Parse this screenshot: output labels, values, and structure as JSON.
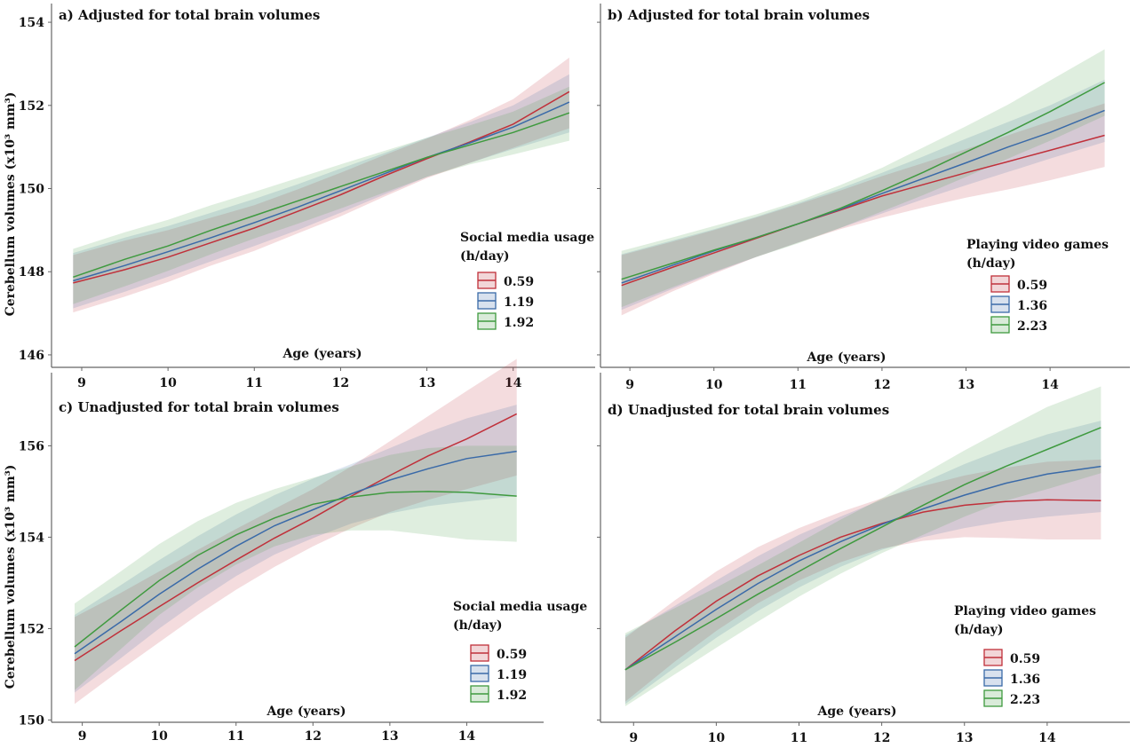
{
  "figure": {
    "ylabel": "Cerebellum volumes (x10³ mm³)",
    "xlabel": "Age (years)"
  },
  "chart_data": [
    {
      "type": "line",
      "title": "a) Adjusted for total brain volumes",
      "xlabel": "Age (years)",
      "ylabel": "Cerebellum volumes (x10³ mm³)",
      "x_ticks": [
        9,
        10,
        11,
        12,
        13,
        14
      ],
      "y_ticks": [
        146,
        148,
        150,
        152,
        154
      ],
      "xlim": [
        8.65,
        14.95
      ],
      "ylim": [
        145.7,
        154.45
      ],
      "x": [
        8.9,
        9.5,
        10,
        10.5,
        11,
        11.5,
        12,
        12.5,
        13,
        13.5,
        14,
        14.65
      ],
      "legend_title": "Social media usage (h/day)",
      "series": [
        {
          "name": "0.59",
          "color": "#c0303a",
          "values": [
            147.73,
            148.05,
            148.35,
            148.7,
            149.05,
            149.45,
            149.85,
            150.3,
            150.72,
            151.12,
            151.55,
            152.33
          ],
          "lower": [
            147.02,
            147.4,
            147.75,
            148.15,
            148.5,
            148.92,
            149.33,
            149.8,
            150.25,
            150.62,
            150.98,
            151.45
          ],
          "upper": [
            148.4,
            148.75,
            149.0,
            149.3,
            149.6,
            149.98,
            150.38,
            150.8,
            151.2,
            151.65,
            152.15,
            153.15
          ]
        },
        {
          "name": "1.19",
          "color": "#3a6aa8",
          "values": [
            147.78,
            148.15,
            148.48,
            148.82,
            149.18,
            149.55,
            149.95,
            150.35,
            150.75,
            151.1,
            151.48,
            152.08
          ],
          "lower": [
            147.12,
            147.52,
            147.88,
            148.25,
            148.62,
            149.0,
            149.42,
            149.85,
            150.28,
            150.62,
            150.95,
            151.35
          ],
          "upper": [
            148.45,
            148.82,
            149.1,
            149.42,
            149.75,
            150.1,
            150.48,
            150.85,
            151.22,
            151.6,
            152.0,
            152.75
          ]
        },
        {
          "name": "1.92",
          "color": "#3f9a3f",
          "values": [
            147.87,
            148.3,
            148.62,
            149.0,
            149.35,
            149.7,
            150.05,
            150.4,
            150.75,
            151.05,
            151.35,
            151.82
          ],
          "lower": [
            147.22,
            147.65,
            148.02,
            148.42,
            148.8,
            149.15,
            149.52,
            149.9,
            150.28,
            150.58,
            150.82,
            151.15
          ],
          "upper": [
            148.55,
            148.95,
            149.25,
            149.6,
            149.92,
            150.25,
            150.58,
            150.9,
            151.22,
            151.52,
            151.85,
            152.45
          ]
        }
      ]
    },
    {
      "type": "line",
      "title": "b) Adjusted for total brain volumes",
      "xlabel": "Age (years)",
      "x_ticks": [
        9,
        10,
        11,
        12,
        13,
        14
      ],
      "xlim": [
        8.65,
        14.95
      ],
      "ylim": [
        145.7,
        154.45
      ],
      "x": [
        8.9,
        9.5,
        10,
        10.5,
        11,
        11.5,
        12,
        12.5,
        13,
        13.5,
        14,
        14.65
      ],
      "legend_title": "Playing video games (h/day)",
      "series": [
        {
          "name": "0.59",
          "color": "#c0303a",
          "values": [
            147.67,
            148.1,
            148.45,
            148.8,
            149.15,
            149.48,
            149.82,
            150.1,
            150.38,
            150.65,
            150.92,
            151.28
          ],
          "lower": [
            146.95,
            147.52,
            147.95,
            148.35,
            148.7,
            149.02,
            149.3,
            149.55,
            149.78,
            149.98,
            150.2,
            150.52
          ],
          "upper": [
            148.4,
            148.72,
            149.0,
            149.3,
            149.62,
            149.95,
            150.3,
            150.62,
            150.95,
            151.28,
            151.62,
            152.05
          ]
        },
        {
          "name": "1.36",
          "color": "#3a6aa8",
          "values": [
            147.73,
            148.15,
            148.5,
            148.82,
            149.15,
            149.5,
            149.88,
            150.25,
            150.62,
            151.0,
            151.35,
            151.88
          ],
          "lower": [
            147.08,
            147.58,
            147.98,
            148.35,
            148.7,
            149.05,
            149.4,
            149.75,
            150.08,
            150.4,
            150.72,
            151.12
          ],
          "upper": [
            148.42,
            148.75,
            149.02,
            149.32,
            149.65,
            150.0,
            150.38,
            150.78,
            151.2,
            151.6,
            152.0,
            152.62
          ]
        },
        {
          "name": "2.23",
          "color": "#3f9a3f",
          "values": [
            147.82,
            148.2,
            148.52,
            148.82,
            149.15,
            149.52,
            149.95,
            150.4,
            150.88,
            151.35,
            151.85,
            152.55
          ],
          "lower": [
            147.15,
            147.62,
            148.0,
            148.35,
            148.68,
            149.05,
            149.45,
            149.85,
            150.28,
            150.72,
            151.15,
            151.75
          ],
          "upper": [
            148.5,
            148.82,
            149.1,
            149.38,
            149.7,
            150.08,
            150.5,
            151.0,
            151.5,
            152.02,
            152.6,
            153.35
          ]
        }
      ]
    },
    {
      "type": "line",
      "title": "c) Unadjusted for total brain volumes",
      "xlabel": "Age (years)",
      "ylabel": "Cerebellum volumes (x10³ mm³)",
      "x_ticks": [
        9,
        10,
        11,
        12,
        13,
        14
      ],
      "y_ticks": [
        150,
        152,
        154,
        156
      ],
      "xlim": [
        8.6,
        15.0
      ],
      "ylim": [
        149.95,
        157.6
      ],
      "x": [
        8.9,
        9.5,
        10,
        10.5,
        11,
        11.5,
        12,
        12.5,
        13,
        13.5,
        14,
        14.65
      ],
      "legend_title": "Social media usage (h/day)",
      "series": [
        {
          "name": "0.59",
          "color": "#c0303a",
          "values": [
            151.3,
            151.95,
            152.48,
            153.0,
            153.5,
            153.98,
            154.42,
            154.9,
            155.35,
            155.78,
            156.15,
            156.7
          ],
          "lower": [
            150.35,
            151.1,
            151.7,
            152.3,
            152.85,
            153.35,
            153.8,
            154.2,
            154.55,
            154.82,
            155.05,
            155.35
          ],
          "upper": [
            152.25,
            152.78,
            153.25,
            153.72,
            154.18,
            154.62,
            155.05,
            155.55,
            156.1,
            156.65,
            157.2,
            157.9
          ]
        },
        {
          "name": "1.19",
          "color": "#3a6aa8",
          "values": [
            151.45,
            152.15,
            152.75,
            153.3,
            153.8,
            154.25,
            154.6,
            154.95,
            155.25,
            155.5,
            155.72,
            155.88
          ],
          "lower": [
            150.6,
            151.35,
            152.0,
            152.6,
            153.15,
            153.62,
            153.98,
            154.3,
            154.52,
            154.68,
            154.78,
            154.9
          ],
          "upper": [
            152.3,
            152.95,
            153.5,
            154.02,
            154.5,
            154.92,
            155.28,
            155.6,
            155.95,
            156.3,
            156.6,
            156.9
          ]
        },
        {
          "name": "1.92",
          "color": "#3f9a3f",
          "values": [
            151.6,
            152.4,
            153.05,
            153.6,
            154.05,
            154.42,
            154.72,
            154.88,
            154.98,
            155.0,
            154.98,
            154.9
          ],
          "lower": [
            150.65,
            151.55,
            152.3,
            152.9,
            153.4,
            153.8,
            154.05,
            154.15,
            154.15,
            154.05,
            153.95,
            153.9
          ],
          "upper": [
            152.55,
            153.25,
            153.85,
            154.35,
            154.75,
            155.05,
            155.3,
            155.55,
            155.8,
            155.95,
            156.0,
            156.0
          ]
        }
      ]
    },
    {
      "type": "line",
      "title": "d) Unadjusted for total brain volumes",
      "xlabel": "Age (years)",
      "x_ticks": [
        9,
        10,
        11,
        12,
        13,
        14
      ],
      "xlim": [
        8.6,
        15.0
      ],
      "ylim": [
        149.95,
        157.6
      ],
      "x": [
        8.9,
        9.5,
        10,
        10.5,
        11,
        11.5,
        12,
        12.5,
        13,
        13.5,
        14,
        14.65
      ],
      "legend_title": "Playing video games (h/day)",
      "series": [
        {
          "name": "0.59",
          "color": "#c0303a",
          "values": [
            151.1,
            151.95,
            152.6,
            153.15,
            153.6,
            154.0,
            154.3,
            154.55,
            154.7,
            154.78,
            154.82,
            154.8
          ],
          "lower": [
            150.4,
            151.28,
            151.95,
            152.55,
            153.05,
            153.45,
            153.75,
            153.92,
            154.0,
            153.98,
            153.95,
            153.95
          ],
          "upper": [
            151.8,
            152.62,
            153.25,
            153.78,
            154.2,
            154.55,
            154.85,
            155.12,
            155.35,
            155.52,
            155.65,
            155.7
          ]
        },
        {
          "name": "1.36",
          "color": "#3a6aa8",
          "values": [
            151.1,
            151.82,
            152.42,
            152.98,
            153.48,
            153.9,
            154.28,
            154.62,
            154.92,
            155.18,
            155.38,
            155.55
          ],
          "lower": [
            150.35,
            151.15,
            151.8,
            152.38,
            152.9,
            153.35,
            153.72,
            154.0,
            154.2,
            154.35,
            154.45,
            154.55
          ],
          "upper": [
            151.85,
            152.5,
            153.05,
            153.58,
            154.05,
            154.45,
            154.82,
            155.2,
            155.6,
            155.95,
            156.25,
            156.55
          ]
        },
        {
          "name": "2.23",
          "color": "#3f9a3f",
          "values": [
            151.1,
            151.7,
            152.22,
            152.75,
            153.25,
            153.75,
            154.22,
            154.7,
            155.15,
            155.55,
            155.92,
            156.4
          ],
          "lower": [
            150.3,
            151.0,
            151.58,
            152.15,
            152.7,
            153.2,
            153.65,
            154.05,
            154.45,
            154.8,
            155.05,
            155.4
          ],
          "upper": [
            151.9,
            152.45,
            152.9,
            153.38,
            153.88,
            154.38,
            154.85,
            155.38,
            155.9,
            156.38,
            156.85,
            157.3
          ]
        }
      ]
    }
  ]
}
